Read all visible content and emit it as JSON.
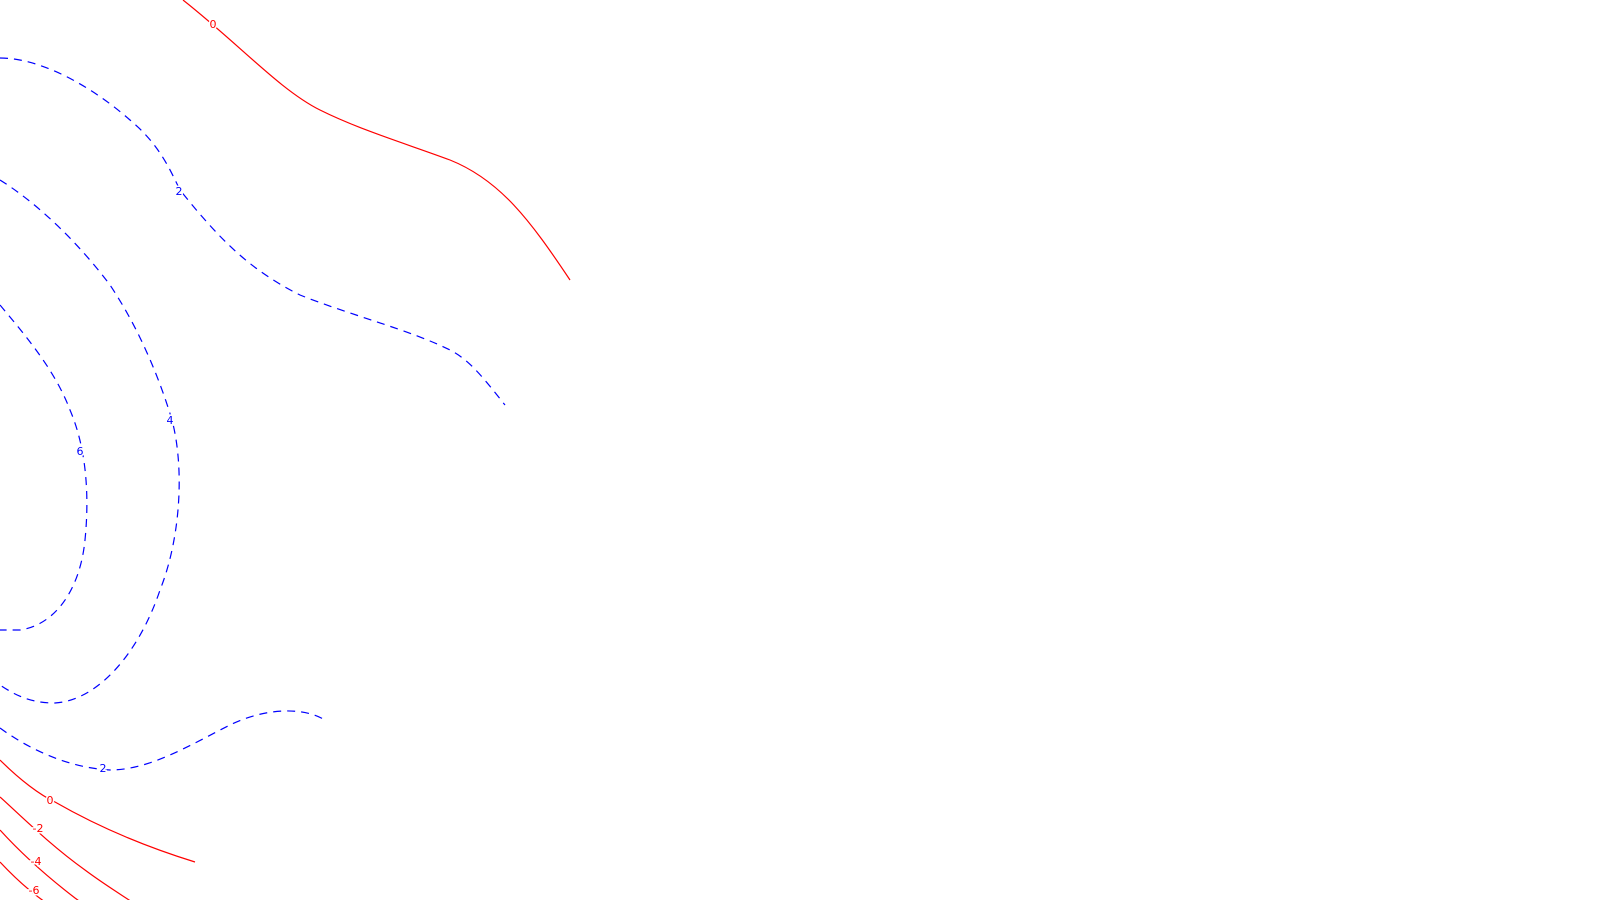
{
  "map": {
    "colors": {
      "negative_or_zero": "#ff0000",
      "positive": "#0000ff",
      "background": "#ffffff"
    },
    "contours": [
      {
        "id": "red-0-top",
        "level": 0,
        "style": "solid",
        "label": "0"
      },
      {
        "id": "blue-2-top",
        "level": 2,
        "style": "dashed",
        "label": "2"
      },
      {
        "id": "blue-4",
        "level": 4,
        "style": "dashed",
        "label": "4"
      },
      {
        "id": "blue-6",
        "level": 6,
        "style": "dashed",
        "label": "6"
      },
      {
        "id": "blue-2-bottom",
        "level": 2,
        "style": "dashed",
        "label": "2"
      },
      {
        "id": "red-0-bottom",
        "level": 0,
        "style": "solid",
        "label": "0"
      },
      {
        "id": "red-minus-2",
        "level": -2,
        "style": "solid",
        "label": "-2"
      },
      {
        "id": "red-minus-4",
        "level": -4,
        "style": "solid",
        "label": "-4"
      },
      {
        "id": "red-minus-6",
        "level": -6,
        "style": "solid",
        "label": "-6"
      }
    ]
  }
}
